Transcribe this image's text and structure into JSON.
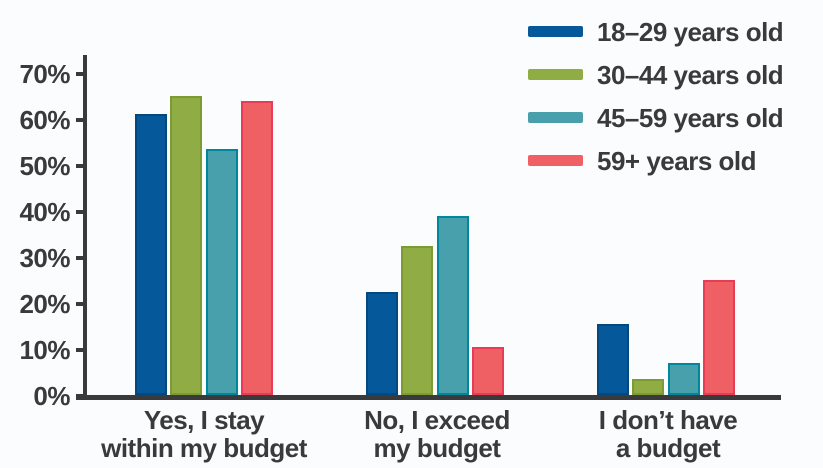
{
  "background": "#FBFCFE",
  "text_color": "#3A3A3C",
  "axis_color": "#3A3A3C",
  "chart_data": {
    "type": "bar",
    "title": "",
    "categories": [
      "Yes, I stay within my budget",
      "No, I exceed my budget",
      "I don't have a budget"
    ],
    "category_label_lines": [
      [
        "Yes, I stay",
        "within my budget"
      ],
      [
        "No, I exceed",
        "my budget"
      ],
      [
        "I don’t have",
        "a budget"
      ]
    ],
    "series": [
      {
        "name": "18–29 years old",
        "color": "#05599B",
        "border_color": "#04487E",
        "values": [
          61,
          22.5,
          15.5
        ]
      },
      {
        "name": "30–44 years old",
        "color": "#8FAD44",
        "border_color": "#7C9C33",
        "values": [
          65,
          32.5,
          3.5
        ]
      },
      {
        "name": "45–59 years old",
        "color": "#47A0AC",
        "border_color": "#00879B",
        "values": [
          53.5,
          39,
          7
        ]
      },
      {
        "name": "59+ years old",
        "color": "#EF6065",
        "border_color": "#E93A56",
        "values": [
          64,
          10.5,
          25
        ]
      }
    ],
    "ylabel": "",
    "xlabel": "",
    "ylim": [
      0,
      70
    ],
    "ytick_step": 10,
    "ytick_labels": [
      "0%",
      "10%",
      "20%",
      "30%",
      "40%",
      "50%",
      "60%",
      "70%"
    ],
    "grid": false,
    "legend_position": "top-right"
  }
}
